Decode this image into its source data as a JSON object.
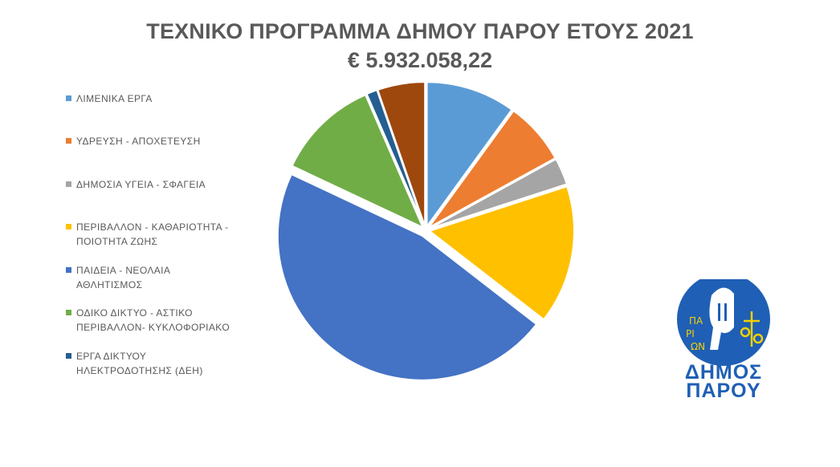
{
  "chart_data": {
    "type": "pie",
    "title": "ΤΕΧΝΙΚΟ ΠΡΟΓΡΑΜΜΑ ΔΗΜΟΥ ΠΑΡΟΥ ΕΤΟΥΣ 2021",
    "subtitle": "€ 5.932.058,22",
    "legend_position": "left",
    "exploded": true,
    "slices": [
      {
        "label": "ΛΙΜΕΝΙΚΑ ΕΡΓΑ",
        "value": 10.0,
        "color": "#5b9bd5"
      },
      {
        "label": "ΥΔΡΕΥΣΗ - ΑΠΟΧΕΤΕΥΣΗ",
        "value": 7.0,
        "color": "#ed7d31"
      },
      {
        "label": "ΔΗΜΟΣΙΑ ΥΓΕΙΑ - ΣΦΑΓΕΙΑ",
        "value": 3.0,
        "color": "#a5a5a5"
      },
      {
        "label": "ΠΕΡΙΒΑΛΛΟΝ - ΚΑΘΑΡΙΟΤΗΤΑ - ΠΟΙΟΤΗΤΑ ΖΩΗΣ",
        "value": 15.5,
        "color": "#ffc000"
      },
      {
        "label": "ΠΑΙΔΕΙΑ - ΝΕΟΛΑΙΑ ΑΘΛΗΤΙΣΜΟΣ",
        "value": 46.5,
        "color": "#4472c4"
      },
      {
        "label": "ΟΔΙΚΟ ΔΙΚΤΥΟ - ΑΣΤΙΚΟ ΠΕΡΙΒΑΛΛΟΝ- ΚΥΚΛΟΦΟΡΙΑΚΟ",
        "value": 11.5,
        "color": "#70ad47"
      },
      {
        "label": "ΕΡΓΑ ΔΙΚΤΥΟΥ ΗΛΕΚΤΡΟΔΟΤΗΣΗΣ (ΔΕΗ)",
        "value": 1.2,
        "color": "#255e91"
      },
      {
        "label": "",
        "value": 5.3,
        "color": "#9e480e"
      }
    ]
  },
  "logo": {
    "line1": "ΔΗΜΟΣ",
    "line2": "ΠΑΡΟΥ",
    "emblem_text": [
      "ΠΑ",
      "ΡΙ",
      "ΩΝ"
    ],
    "colors": {
      "blue": "#1f5fb5",
      "yellow": "#f5d000"
    }
  }
}
